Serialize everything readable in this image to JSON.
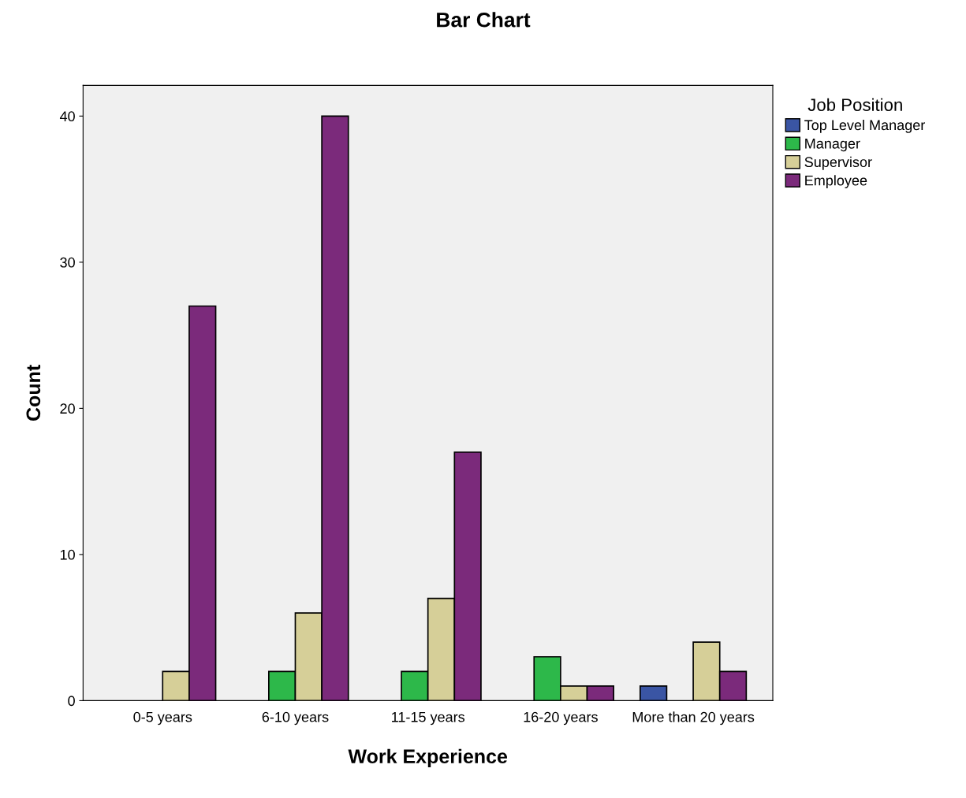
{
  "chart_data": {
    "type": "bar",
    "title": "Bar Chart",
    "xlabel": "Work Experience",
    "ylabel": "Count",
    "legend_title": "Job Position",
    "categories": [
      "0-5 years",
      "6-10 years",
      "11-15 years",
      "16-20 years",
      "More than 20 years"
    ],
    "series": [
      {
        "name": "Top Level Manager",
        "color": "#3a55a4",
        "values": [
          null,
          null,
          null,
          null,
          1
        ]
      },
      {
        "name": "Manager",
        "color": "#2db84a",
        "values": [
          null,
          2,
          2,
          3,
          null
        ]
      },
      {
        "name": "Supervisor",
        "color": "#d6cf98",
        "values": [
          2,
          6,
          7,
          1,
          4
        ]
      },
      {
        "name": "Employee",
        "color": "#7b2a7b",
        "values": [
          27,
          40,
          17,
          1,
          2
        ]
      }
    ],
    "ylim": [
      0,
      42.1
    ],
    "yticks": [
      0,
      10,
      20,
      30,
      40
    ],
    "grid": false,
    "legend": "top right"
  }
}
